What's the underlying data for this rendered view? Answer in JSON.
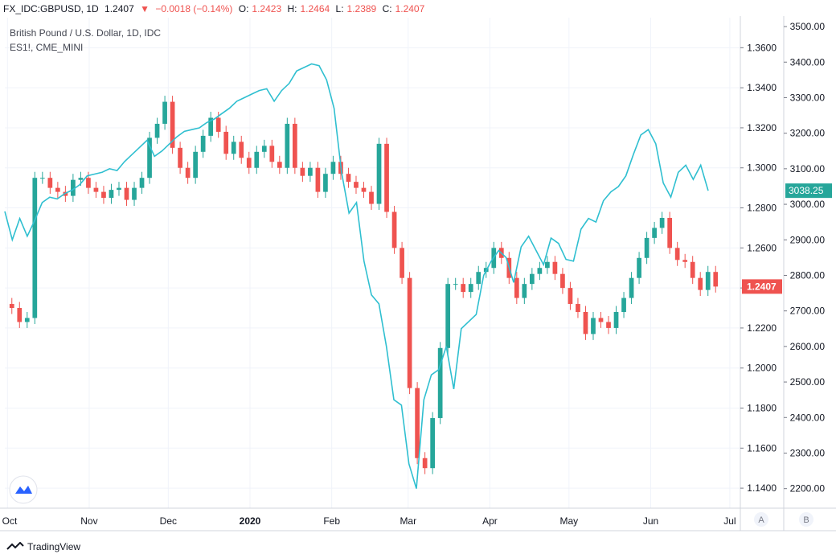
{
  "header": {
    "symbol": "FX_IDC:GBPUSD, 1D",
    "last": "1.2407",
    "arrow": "▼",
    "change": "−0.0018 (−0.14%)",
    "o_label": "O:",
    "o_value": "1.2423",
    "h_label": "H:",
    "h_value": "1.2464",
    "l_label": "L:",
    "l_value": "1.2389",
    "c_label": "C:",
    "c_value": "1.2407"
  },
  "pane": {
    "title": "British Pound / U.S. Dollar, 1D, IDC",
    "overlay": "ES1!, CME_MINI"
  },
  "scale_buttons": {
    "a": "A",
    "b": "B"
  },
  "footer": {
    "brand": "TradingView"
  },
  "colors": {
    "up": "#26a69a",
    "down": "#ef5350",
    "overlay": "#2fbfd0",
    "grid": "#f0f3fa",
    "axis_text": "#131722",
    "tag_gbp": "#ef5350",
    "tag_es": "#26a69a"
  },
  "chart_data": {
    "type": "candlestick",
    "x_ticks": [
      "Oct",
      "Nov",
      "Dec",
      "2020",
      "Feb",
      "Mar",
      "Apr",
      "May",
      "Jun",
      "Jul"
    ],
    "x_range": [
      "2019-09-30",
      "2020-07-05"
    ],
    "left_axis": {
      "ticks": [
        "1.3600",
        "1.3400",
        "1.3200",
        "1.3000",
        "1.2800",
        "1.2600",
        "1.2400",
        "1.2200",
        "1.2000",
        "1.1800",
        "1.1600",
        "1.1400"
      ],
      "range": [
        1.13,
        1.375
      ],
      "last_tag": "1.2407"
    },
    "right_axis": {
      "ticks": [
        "3500.00",
        "3400.00",
        "3300.00",
        "3200.00",
        "3100.00",
        "3000.00",
        "2900.00",
        "2800.00",
        "2700.00",
        "2600.00",
        "2500.00",
        "2400.00",
        "2300.00",
        "2200.00"
      ],
      "range": [
        2145,
        3525
      ],
      "last_tag": "3038.25"
    },
    "gbpusd_close": [
      1.23,
      1.223,
      1.225,
      1.295,
      1.295,
      1.29,
      1.288,
      1.286,
      1.294,
      1.295,
      1.29,
      1.288,
      1.285,
      1.289,
      1.29,
      1.284,
      1.29,
      1.295,
      1.315,
      1.322,
      1.333,
      1.31,
      1.3,
      1.295,
      1.308,
      1.316,
      1.325,
      1.318,
      1.307,
      1.313,
      1.305,
      1.3,
      1.308,
      1.311,
      1.303,
      1.3,
      1.322,
      1.3,
      1.296,
      1.3,
      1.288,
      1.297,
      1.303,
      1.297,
      1.293,
      1.29,
      1.288,
      1.282,
      1.312,
      1.278,
      1.26,
      1.245,
      1.19,
      1.155,
      1.15,
      1.175,
      1.21,
      1.242,
      1.242,
      1.238,
      1.242,
      1.248,
      1.25,
      1.26,
      1.255,
      1.245,
      1.235,
      1.242,
      1.247,
      1.25,
      1.253,
      1.247,
      1.24,
      1.232,
      1.228,
      1.217,
      1.225,
      1.223,
      1.22,
      1.228,
      1.235,
      1.245,
      1.255,
      1.265,
      1.27,
      1.275,
      1.26,
      1.254,
      1.253,
      1.245,
      1.239,
      1.248,
      1.2407
    ],
    "es1_close": [
      2980,
      2900,
      2960,
      2910,
      2955,
      3005,
      3020,
      3015,
      3030,
      3040,
      3055,
      3080,
      3085,
      3090,
      3100,
      3095,
      3120,
      3140,
      3160,
      3180,
      3135,
      3150,
      3170,
      3190,
      3205,
      3210,
      3215,
      3230,
      3240,
      3255,
      3270,
      3290,
      3300,
      3310,
      3320,
      3325,
      3290,
      3320,
      3340,
      3375,
      3385,
      3395,
      3390,
      3350,
      3270,
      3090,
      2975,
      3005,
      2840,
      2745,
      2720,
      2600,
      2450,
      2435,
      2270,
      2200,
      2450,
      2520,
      2535,
      2600,
      2480,
      2650,
      2670,
      2690,
      2800,
      2840,
      2870,
      2850,
      2780,
      2880,
      2910,
      2870,
      2830,
      2905,
      2890,
      2845,
      2840,
      2930,
      2960,
      2950,
      3010,
      3035,
      3050,
      3080,
      3140,
      3195,
      3210,
      3170,
      3060,
      3020,
      3090,
      3110,
      3070,
      3110,
      3038.25
    ]
  }
}
